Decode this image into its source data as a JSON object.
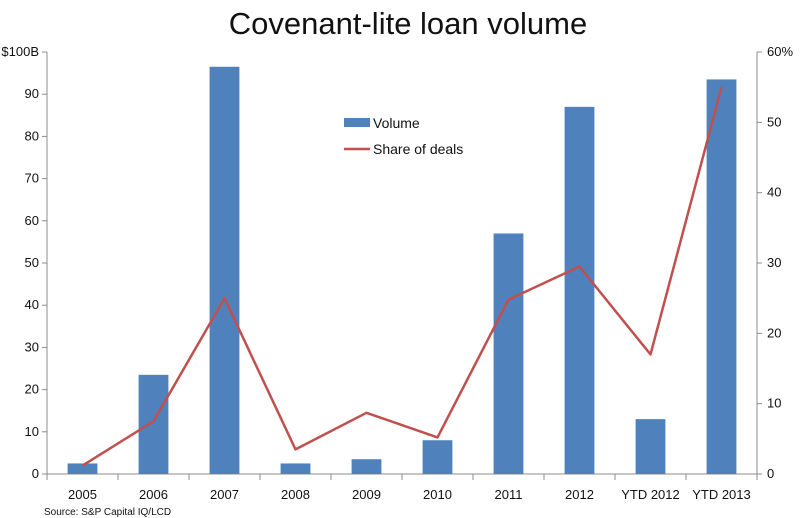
{
  "chart_data": {
    "type": "bar",
    "title": "Covenant-lite loan volume",
    "categories": [
      "2005",
      "2006",
      "2007",
      "2008",
      "2009",
      "2010",
      "2011",
      "2012",
      "YTD 2012",
      "YTD 2013"
    ],
    "series": [
      {
        "name": "Volume",
        "type": "bar",
        "axis": "left",
        "color": "#4f81bd",
        "values": [
          2.5,
          23.5,
          96.5,
          2.5,
          3.5,
          8,
          57,
          87,
          13,
          93.5
        ]
      },
      {
        "name": "Share of deals",
        "type": "line",
        "axis": "right",
        "color": "#c0504d",
        "values": [
          1.2,
          7.5,
          25,
          3.5,
          8.7,
          5.2,
          24.8,
          29.5,
          17,
          55
        ]
      }
    ],
    "y_left": {
      "ylim": [
        0,
        100
      ],
      "ticks": [
        "0",
        "10",
        "20",
        "30",
        "40",
        "50",
        "60",
        "70",
        "80",
        "90",
        "$100B"
      ]
    },
    "y_right": {
      "ylim": [
        0,
        60
      ],
      "ticks": [
        "0",
        "10",
        "20",
        "30",
        "40",
        "50",
        "60%"
      ]
    },
    "legend_position": "top-center",
    "grid": false,
    "source": "Source: S&P Capital IQ/LCD"
  }
}
